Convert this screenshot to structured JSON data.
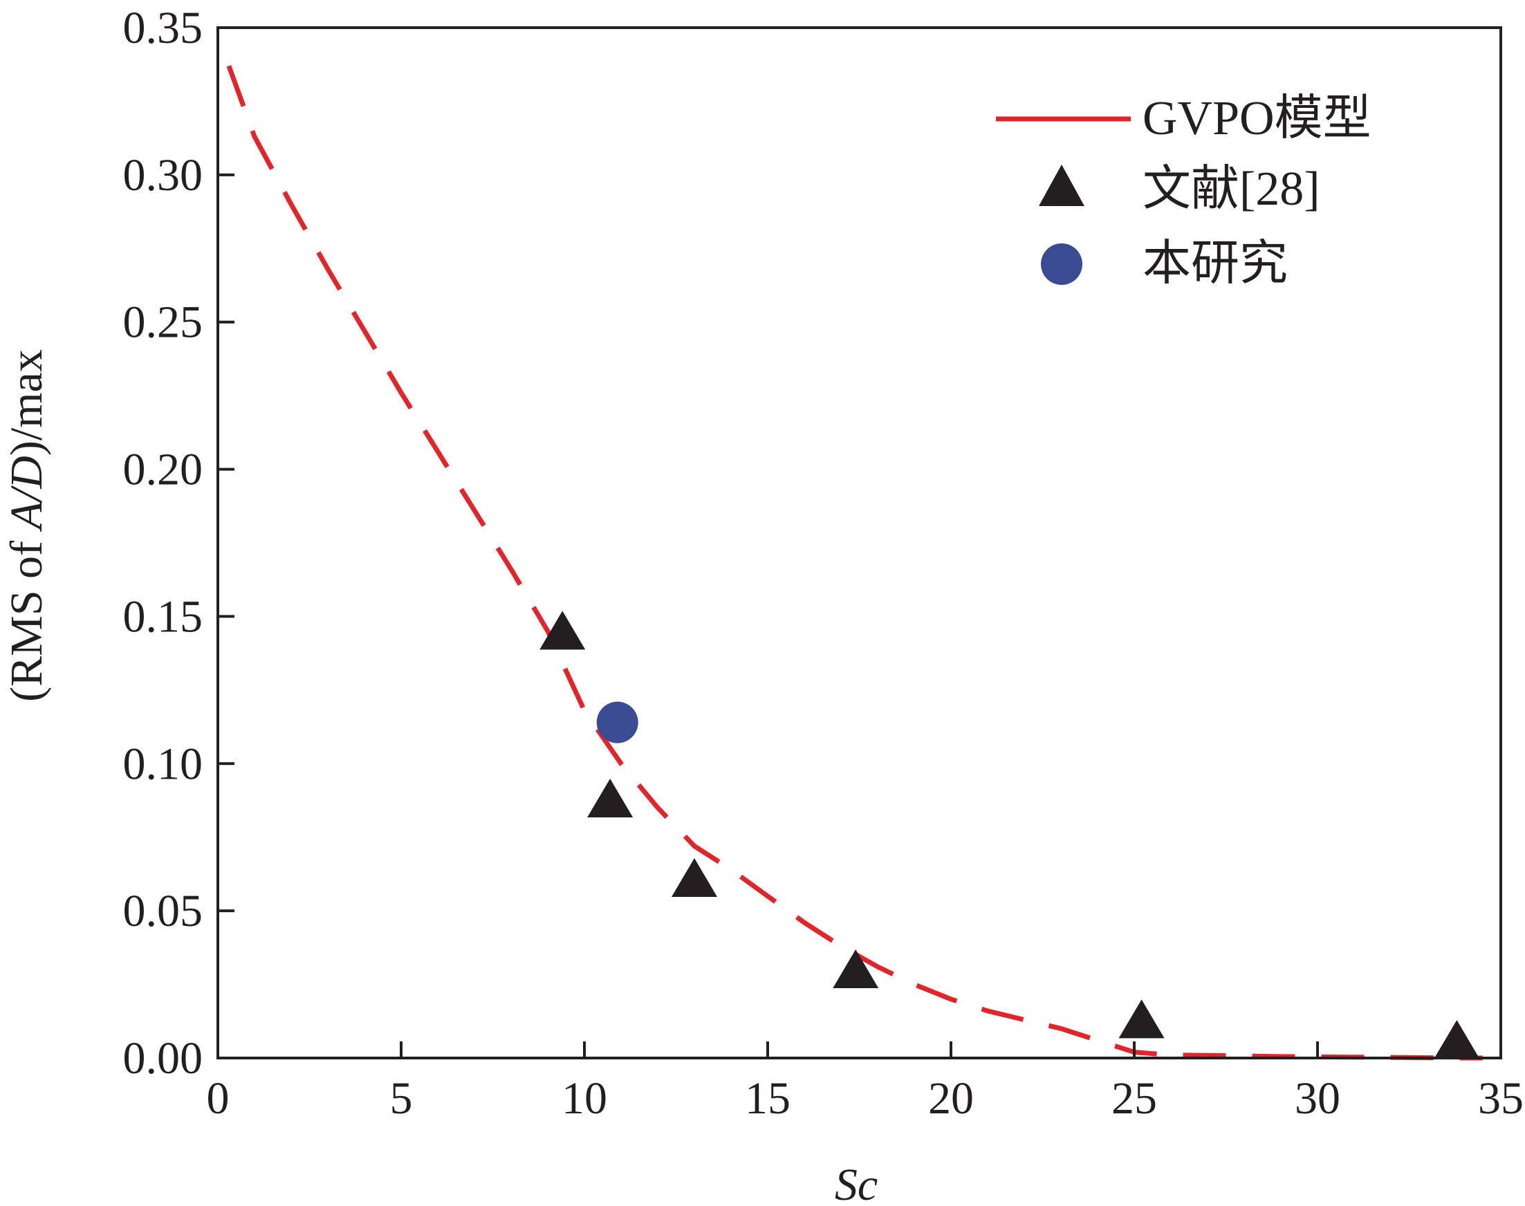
{
  "chart_data": {
    "type": "scatter",
    "xlabel": "Sc",
    "ylabel_parts": [
      "(RMS of ",
      "A/D",
      ")/max"
    ],
    "xlim": [
      0,
      35
    ],
    "ylim": [
      0,
      0.35
    ],
    "xticks": [
      0,
      5,
      10,
      15,
      20,
      25,
      30,
      35
    ],
    "xtick_labels": [
      "0",
      "5",
      "10",
      "15",
      "20",
      "25",
      "30",
      "35"
    ],
    "yticks": [
      0,
      0.05,
      0.1,
      0.15,
      0.2,
      0.25,
      0.3,
      0.35
    ],
    "ytick_labels": [
      "0.00",
      "0.05",
      "0.10",
      "0.15",
      "0.20",
      "0.25",
      "0.30",
      "0.35"
    ],
    "grid": false,
    "legend_position": "top-right",
    "series": [
      {
        "name": "GVPO模型",
        "kind": "line",
        "style": "dashed",
        "color": "#e0262b",
        "x": [
          0.3,
          1,
          2,
          3,
          4,
          5,
          6,
          7,
          8,
          9,
          10,
          11,
          12,
          13,
          14,
          15,
          16,
          17,
          18,
          19,
          20,
          21,
          22,
          23,
          24,
          25,
          26,
          27,
          28,
          29,
          30,
          31,
          32,
          33,
          34,
          34.5
        ],
        "y": [
          0.337,
          0.313,
          0.29,
          0.268,
          0.247,
          0.226,
          0.206,
          0.186,
          0.166,
          0.145,
          0.118,
          0.1,
          0.085,
          0.072,
          0.064,
          0.055,
          0.046,
          0.038,
          0.031,
          0.025,
          0.02,
          0.016,
          0.013,
          0.01,
          0.006,
          0.002,
          0.001,
          0.0009,
          0.0007,
          0.0005,
          0.0004,
          0.0003,
          0.0002,
          0.0001,
          0.0,
          0.0
        ]
      },
      {
        "name": "文献[28]",
        "kind": "scatter",
        "marker": "triangle",
        "color": "#231f20",
        "x": [
          9.4,
          10.7,
          13.0,
          17.4,
          25.2,
          33.8
        ],
        "y": [
          0.144,
          0.087,
          0.06,
          0.029,
          0.012,
          0.005
        ]
      },
      {
        "name": "本研究",
        "kind": "scatter",
        "marker": "circle",
        "color": "#3a4a93",
        "x": [
          10.9
        ],
        "y": [
          0.114
        ]
      }
    ]
  }
}
